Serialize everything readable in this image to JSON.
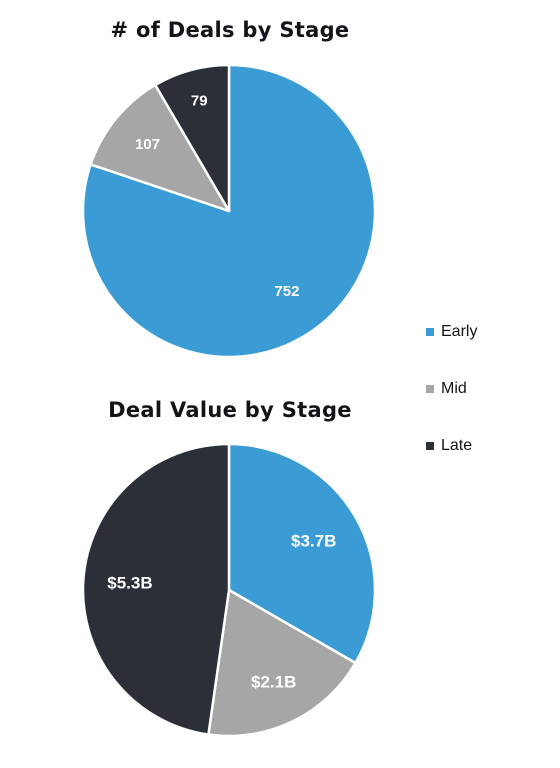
{
  "colors": {
    "early": "#3a9bd5",
    "mid": "#a6a6a6",
    "late": "#2b3038"
  },
  "legend": [
    {
      "label": "Early",
      "color": "#3a9bd5"
    },
    {
      "label": "Mid",
      "color": "#a6a6a6"
    },
    {
      "label": "Late",
      "color": "#2b3038"
    }
  ],
  "chart_data": [
    {
      "type": "pie",
      "title": "# of Deals by Stage",
      "categories": [
        "Early",
        "Mid",
        "Late"
      ],
      "values": [
        752,
        107,
        79
      ],
      "labels": [
        "752",
        "107",
        "79"
      ],
      "colors": [
        "#3a9bd5",
        "#a6a6a6",
        "#2b3038"
      ],
      "legend": "right"
    },
    {
      "type": "pie",
      "title": "Deal Value by Stage",
      "categories": [
        "Early",
        "Mid",
        "Late"
      ],
      "values": [
        3.7,
        2.1,
        5.3
      ],
      "labels": [
        "$3.7B",
        "$2.1B",
        "$5.3B"
      ],
      "colors": [
        "#3a9bd5",
        "#a6a6a6",
        "#2b3038"
      ],
      "legend": "right"
    }
  ]
}
